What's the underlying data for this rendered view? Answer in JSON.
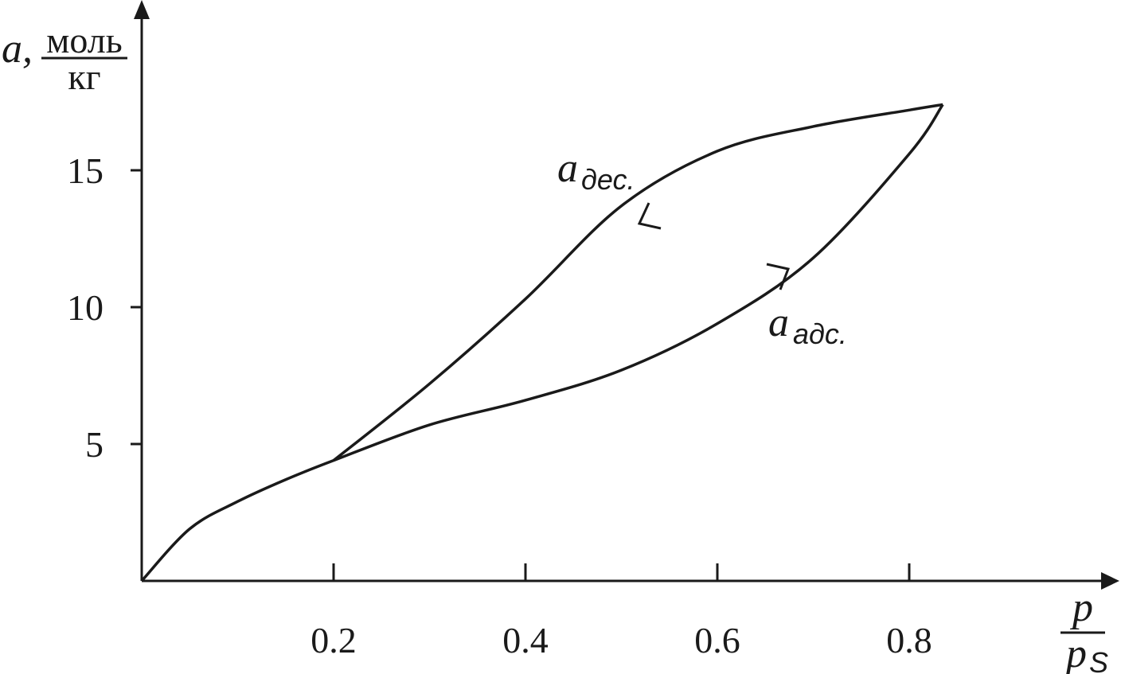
{
  "chart_data": {
    "type": "line",
    "y_label": {
      "symbol": "a,",
      "numerator": "моль",
      "denominator": "кг"
    },
    "x_label": {
      "numerator": "p",
      "denominator": "p",
      "denominator_subscript": "S"
    },
    "series": [
      {
        "color": "#1a1a1a",
        "x": [
          0,
          0.05,
          0.1,
          0.15,
          0.2,
          0.3,
          0.4,
          0.5,
          0.6,
          0.7,
          0.8,
          0.835
        ],
        "values": [
          0,
          1.9,
          2.9,
          3.7,
          4.4,
          5.7,
          6.6,
          7.7,
          9.4,
          11.8,
          15.6,
          17.4
        ]
      },
      {
        "color": "#1a1a1a",
        "x": [
          0.835,
          0.8,
          0.7,
          0.6,
          0.5,
          0.4,
          0.3,
          0.2
        ],
        "values": [
          17.4,
          17.2,
          16.6,
          15.7,
          13.7,
          10.3,
          7.2,
          4.4
        ]
      }
    ],
    "annotations": [
      {
        "symbol": "a",
        "subscript": "дес."
      },
      {
        "symbol": "a",
        "subscript": "адс."
      }
    ],
    "xlim": [
      0,
      1
    ],
    "ylim": [
      0,
      21
    ],
    "xticks": [
      0.2,
      0.4,
      0.6,
      0.8
    ],
    "yticks": [
      5,
      10,
      15
    ],
    "grid": false
  }
}
